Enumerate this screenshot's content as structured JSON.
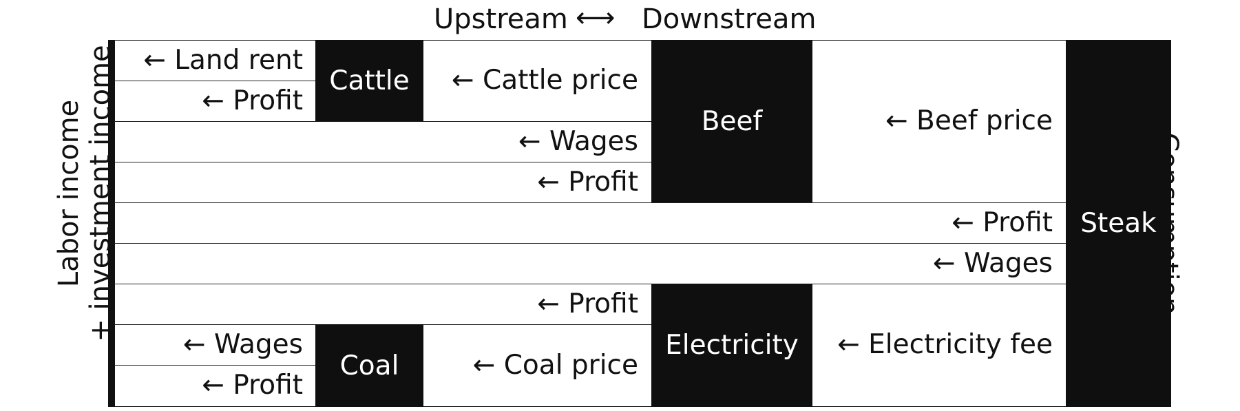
{
  "header": {
    "upstream": "Upstream",
    "arrow": "⟷",
    "downstream": "Downstream"
  },
  "left_label": {
    "line1": "Labor income",
    "line2": "+ investment income"
  },
  "right_label": "Consumption",
  "products": {
    "cattle": "Cattle",
    "beef": "Beef",
    "steak": "Steak",
    "electricity": "Electricity",
    "coal": "Coal"
  },
  "flows": {
    "land_rent": "← Land rent",
    "cattle_profit": "← Profit",
    "cattle_price": "← Cattle price",
    "beef_wages": "← Wages",
    "beef_profit": "← Profit",
    "beef_price": "← Beef price",
    "steak_profit": "← Profit",
    "steak_wages": "← Wages",
    "electricity_profit": "← Profit",
    "coal_wages": "← Wages",
    "coal_profit": "← Profit",
    "coal_price": "← Coal price",
    "electricity_fee": "← Electricity fee"
  },
  "colors": {
    "box": "#0f0f0f",
    "box_text": "#ffffff",
    "line": "#222222"
  }
}
